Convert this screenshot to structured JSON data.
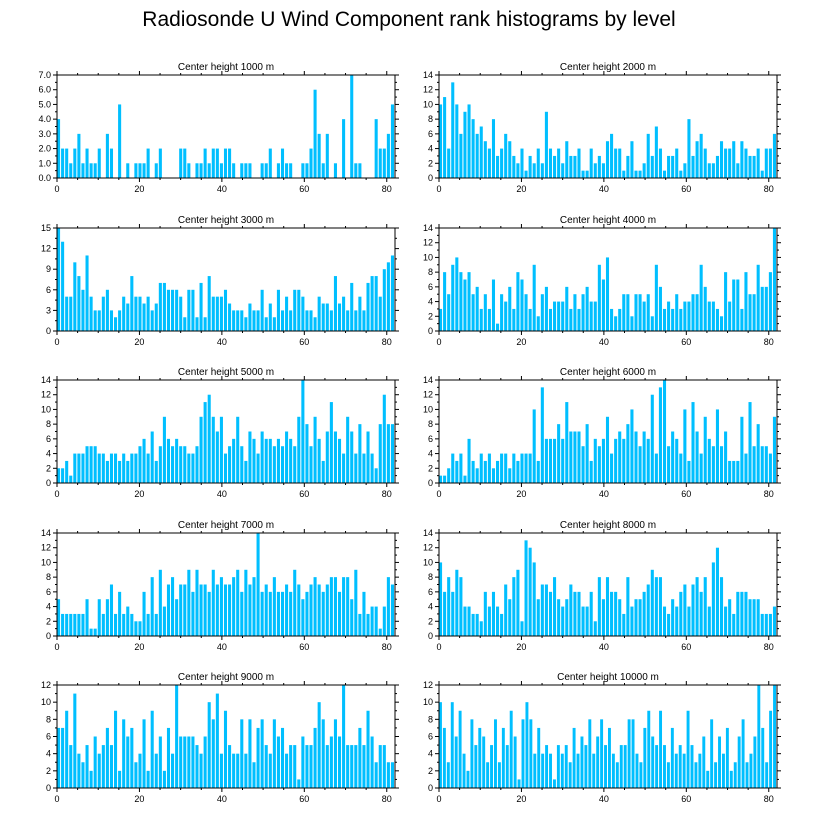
{
  "title": "Radiosonde U Wind Component rank histograms by level",
  "colors": {
    "bar": "#00bfff",
    "axis": "#000000"
  },
  "chart_data": [
    {
      "type": "bar",
      "title": "Center height 1000 m",
      "xlim": [
        0,
        82
      ],
      "ylim": [
        0,
        7
      ],
      "yticks": [
        0,
        1,
        2,
        3,
        4,
        5,
        6,
        7
      ],
      "ytick_labels": [
        "0.0",
        "1.0",
        "2.0",
        "3.0",
        "4.0",
        "5.0",
        "6.0",
        "7.0"
      ],
      "xticks": [
        0,
        20,
        40,
        60,
        80
      ],
      "xtick_labels": [
        "0",
        "20",
        "40",
        "60",
        "80"
      ],
      "values": [
        4,
        2,
        2,
        1,
        2,
        3,
        1,
        2,
        1,
        1,
        2,
        0,
        3,
        2,
        0,
        5,
        0,
        1,
        0,
        1,
        1,
        1,
        2,
        0,
        1,
        2,
        0,
        0,
        0,
        0,
        2,
        2,
        1,
        0,
        1,
        1,
        2,
        1,
        2,
        2,
        1,
        2,
        2,
        1,
        0,
        1,
        1,
        1,
        0,
        0,
        1,
        1,
        2,
        0,
        1,
        2,
        1,
        1,
        0,
        0,
        1,
        1,
        2,
        6,
        3,
        1,
        3,
        0,
        1,
        0,
        4,
        0,
        7,
        1,
        1,
        0,
        0,
        0,
        4,
        2,
        2,
        3,
        5
      ]
    },
    {
      "type": "bar",
      "title": "Center height 2000 m",
      "xlim": [
        0,
        82
      ],
      "ylim": [
        0,
        14
      ],
      "yticks": [
        0,
        2,
        4,
        6,
        8,
        10,
        12,
        14
      ],
      "ytick_labels": [
        "0",
        "2",
        "4",
        "6",
        "8",
        "10",
        "12",
        "14"
      ],
      "xticks": [
        0,
        20,
        40,
        60,
        80
      ],
      "xtick_labels": [
        "0",
        "20",
        "40",
        "60",
        "80"
      ],
      "values": [
        10,
        11,
        4,
        13,
        10,
        6,
        9,
        10,
        8,
        6,
        7,
        5,
        4,
        8,
        3,
        4,
        6,
        5,
        3,
        2,
        4,
        1,
        3,
        2,
        4,
        2,
        9,
        4,
        3,
        4,
        2,
        5,
        3,
        3,
        4,
        1,
        1,
        4,
        2,
        3,
        2,
        5,
        6,
        4,
        4,
        1,
        3,
        5,
        1,
        1,
        2,
        6,
        3,
        7,
        4,
        1,
        3,
        3,
        4,
        1,
        2,
        8,
        3,
        5,
        6,
        4,
        2,
        2,
        3,
        5,
        4,
        4,
        5,
        2,
        5,
        4,
        3,
        3,
        4,
        1,
        4,
        4,
        6
      ]
    },
    {
      "type": "bar",
      "title": "Center height 3000 m",
      "xlim": [
        0,
        82
      ],
      "ylim": [
        0,
        15
      ],
      "yticks": [
        0,
        3,
        6,
        9,
        12,
        15
      ],
      "ytick_labels": [
        "0",
        "3",
        "6",
        "9",
        "12",
        "15"
      ],
      "xticks": [
        0,
        20,
        40,
        60,
        80
      ],
      "xtick_labels": [
        "0",
        "20",
        "40",
        "60",
        "80"
      ],
      "values": [
        15,
        13,
        5,
        5,
        10,
        8,
        6,
        11,
        5,
        3,
        3,
        5,
        6,
        3,
        2,
        3,
        5,
        4,
        8,
        5,
        5,
        4,
        5,
        3,
        4,
        7,
        7,
        6,
        6,
        6,
        5,
        2,
        6,
        6,
        2,
        7,
        2,
        8,
        5,
        5,
        5,
        6,
        4,
        3,
        3,
        3,
        2,
        4,
        3,
        3,
        6,
        2,
        4,
        2,
        6,
        3,
        5,
        3,
        6,
        6,
        5,
        3,
        3,
        2,
        5,
        4,
        4,
        3,
        8,
        4,
        5,
        3,
        7,
        3,
        5,
        3,
        7,
        8,
        8,
        5,
        9,
        10,
        11
      ]
    },
    {
      "type": "bar",
      "title": "Center height 4000 m",
      "xlim": [
        0,
        82
      ],
      "ylim": [
        0,
        14
      ],
      "yticks": [
        0,
        2,
        4,
        6,
        8,
        10,
        12,
        14
      ],
      "ytick_labels": [
        "0",
        "2",
        "4",
        "6",
        "8",
        "10",
        "12",
        "14"
      ],
      "xticks": [
        0,
        20,
        40,
        60,
        80
      ],
      "xtick_labels": [
        "0",
        "20",
        "40",
        "60",
        "80"
      ],
      "values": [
        3,
        8,
        5,
        9,
        10,
        8,
        7,
        8,
        5,
        6,
        3,
        5,
        3,
        7,
        1,
        5,
        4,
        6,
        3,
        8,
        7,
        5,
        3,
        9,
        2,
        5,
        6,
        3,
        4,
        4,
        4,
        6,
        3,
        5,
        3,
        5,
        6,
        4,
        4,
        9,
        7,
        10,
        3,
        2,
        3,
        5,
        5,
        2,
        5,
        5,
        4,
        5,
        2,
        9,
        6,
        3,
        4,
        3,
        5,
        3,
        4,
        4,
        5,
        5,
        9,
        6,
        4,
        4,
        3,
        2,
        8,
        4,
        7,
        7,
        3,
        8,
        5,
        5,
        9,
        6,
        6,
        8,
        14
      ]
    },
    {
      "type": "bar",
      "title": "Center height 5000 m",
      "xlim": [
        0,
        82
      ],
      "ylim": [
        0,
        14
      ],
      "yticks": [
        0,
        2,
        4,
        6,
        8,
        10,
        12,
        14
      ],
      "ytick_labels": [
        "0",
        "2",
        "4",
        "6",
        "8",
        "10",
        "12",
        "14"
      ],
      "xticks": [
        0,
        20,
        40,
        60,
        80
      ],
      "xtick_labels": [
        "0",
        "20",
        "40",
        "60",
        "80"
      ],
      "values": [
        2,
        2,
        3,
        1,
        4,
        4,
        4,
        5,
        5,
        5,
        4,
        4,
        3,
        4,
        4,
        3,
        4,
        3,
        4,
        4,
        5,
        6,
        4,
        7,
        3,
        5,
        9,
        6,
        5,
        6,
        5,
        5,
        4,
        4,
        5,
        9,
        11,
        12,
        9,
        7,
        9,
        4,
        5,
        6,
        9,
        5,
        3,
        7,
        6,
        4,
        7,
        6,
        6,
        5,
        6,
        5,
        7,
        6,
        5,
        9,
        14,
        8,
        5,
        9,
        6,
        3,
        7,
        11,
        7,
        6,
        4,
        9,
        7,
        4,
        8,
        4,
        7,
        4,
        2,
        8,
        12,
        8,
        8
      ]
    },
    {
      "type": "bar",
      "title": "Center height 6000 m",
      "xlim": [
        0,
        82
      ],
      "ylim": [
        0,
        14
      ],
      "yticks": [
        0,
        2,
        4,
        6,
        8,
        10,
        12,
        14
      ],
      "ytick_labels": [
        "0",
        "2",
        "4",
        "6",
        "8",
        "10",
        "12",
        "14"
      ],
      "xticks": [
        0,
        20,
        40,
        60,
        80
      ],
      "xtick_labels": [
        "0",
        "20",
        "40",
        "60",
        "80"
      ],
      "values": [
        1,
        1,
        2,
        4,
        3,
        4,
        1,
        6,
        3,
        2,
        4,
        3,
        4,
        2,
        3,
        4,
        4,
        2,
        4,
        3,
        4,
        4,
        4,
        10,
        3,
        13,
        6,
        6,
        6,
        8,
        6,
        11,
        7,
        7,
        7,
        5,
        8,
        3,
        6,
        5,
        6,
        9,
        4,
        6,
        7,
        6,
        8,
        10,
        7,
        5,
        7,
        6,
        12,
        4,
        13,
        14,
        5,
        7,
        6,
        4,
        10,
        3,
        11,
        7,
        4,
        9,
        6,
        5,
        10,
        5,
        7,
        3,
        3,
        3,
        9,
        4,
        11,
        5,
        8,
        5,
        5,
        4,
        9
      ]
    },
    {
      "type": "bar",
      "title": "Center height 7000 m",
      "xlim": [
        0,
        82
      ],
      "ylim": [
        0,
        14
      ],
      "yticks": [
        0,
        2,
        4,
        6,
        8,
        10,
        12,
        14
      ],
      "ytick_labels": [
        "0",
        "2",
        "4",
        "6",
        "8",
        "10",
        "12",
        "14"
      ],
      "xticks": [
        0,
        20,
        40,
        60,
        80
      ],
      "xtick_labels": [
        "0",
        "20",
        "40",
        "60",
        "80"
      ],
      "values": [
        5,
        3,
        3,
        3,
        3,
        3,
        3,
        5,
        1,
        1,
        5,
        3,
        5,
        7,
        3,
        6,
        3,
        4,
        3,
        2,
        2,
        6,
        3,
        8,
        3,
        9,
        4,
        7,
        8,
        5,
        7,
        7,
        9,
        6,
        9,
        7,
        7,
        6,
        9,
        7,
        8,
        7,
        7,
        8,
        9,
        6,
        9,
        7,
        8,
        14,
        6,
        7,
        6,
        8,
        6,
        6,
        7,
        6,
        9,
        7,
        5,
        6,
        7,
        8,
        7,
        6,
        7,
        8,
        8,
        6,
        8,
        8,
        5,
        9,
        3,
        6,
        3,
        4,
        4,
        1,
        4,
        8,
        7
      ]
    },
    {
      "type": "bar",
      "title": "Center height 8000 m",
      "xlim": [
        0,
        82
      ],
      "ylim": [
        0,
        14
      ],
      "yticks": [
        0,
        2,
        4,
        6,
        8,
        10,
        12,
        14
      ],
      "ytick_labels": [
        "0",
        "2",
        "4",
        "6",
        "8",
        "10",
        "12",
        "14"
      ],
      "xticks": [
        0,
        20,
        40,
        60,
        80
      ],
      "xtick_labels": [
        "0",
        "20",
        "40",
        "60",
        "80"
      ],
      "values": [
        10,
        6,
        8,
        6,
        9,
        8,
        4,
        4,
        3,
        3,
        2,
        6,
        4,
        6,
        4,
        3,
        7,
        5,
        8,
        9,
        2,
        13,
        12,
        10,
        5,
        7,
        7,
        6,
        8,
        5,
        4,
        5,
        7,
        6,
        6,
        4,
        4,
        6,
        2,
        8,
        5,
        8,
        6,
        6,
        5,
        3,
        8,
        4,
        5,
        5,
        6,
        7,
        9,
        8,
        8,
        4,
        3,
        5,
        4,
        6,
        7,
        4,
        7,
        8,
        6,
        8,
        4,
        10,
        12,
        8,
        4,
        5,
        3,
        6,
        6,
        6,
        5,
        5,
        5,
        3,
        3,
        3,
        4
      ]
    },
    {
      "type": "bar",
      "title": "Center height 9000 m",
      "xlim": [
        0,
        82
      ],
      "ylim": [
        0,
        12
      ],
      "yticks": [
        0,
        2,
        4,
        6,
        8,
        10,
        12
      ],
      "ytick_labels": [
        "0",
        "2",
        "4",
        "6",
        "8",
        "10",
        "12"
      ],
      "xticks": [
        0,
        20,
        40,
        60,
        80
      ],
      "xtick_labels": [
        "0",
        "20",
        "40",
        "60",
        "80"
      ],
      "values": [
        7,
        7,
        9,
        5,
        11,
        4,
        3,
        5,
        2,
        6,
        4,
        5,
        7,
        5,
        9,
        2,
        8,
        6,
        7,
        3,
        4,
        8,
        2,
        9,
        4,
        6,
        2,
        7,
        4,
        12,
        6,
        6,
        6,
        6,
        5,
        4,
        6,
        10,
        8,
        11,
        4,
        9,
        5,
        4,
        4,
        8,
        4,
        8,
        3,
        7,
        8,
        5,
        4,
        8,
        6,
        7,
        4,
        5,
        5,
        1,
        6,
        5,
        5,
        7,
        10,
        8,
        5,
        6,
        8,
        6,
        12,
        5,
        5,
        5,
        7,
        5,
        9,
        6,
        3,
        5,
        5,
        3,
        3
      ]
    },
    {
      "type": "bar",
      "title": "Center height 10000 m",
      "xlim": [
        0,
        82
      ],
      "ylim": [
        0,
        12
      ],
      "yticks": [
        0,
        2,
        4,
        6,
        8,
        10,
        12
      ],
      "ytick_labels": [
        "0",
        "2",
        "4",
        "6",
        "8",
        "10",
        "12"
      ],
      "xticks": [
        0,
        20,
        40,
        60,
        80
      ],
      "xtick_labels": [
        "0",
        "20",
        "40",
        "60",
        "80"
      ],
      "values": [
        10,
        7,
        3,
        10,
        6,
        9,
        4,
        2,
        8,
        5,
        7,
        6,
        3,
        5,
        8,
        3,
        7,
        5,
        9,
        6,
        1,
        8,
        10,
        8,
        4,
        7,
        4,
        5,
        4,
        1,
        5,
        4,
        5,
        3,
        7,
        4,
        6,
        5,
        8,
        4,
        6,
        8,
        5,
        7,
        4,
        3,
        5,
        5,
        8,
        8,
        4,
        3,
        7,
        9,
        6,
        5,
        9,
        5,
        3,
        7,
        4,
        5,
        4,
        9,
        5,
        3,
        4,
        6,
        2,
        8,
        3,
        6,
        4,
        7,
        2,
        3,
        6,
        8,
        3,
        4,
        6,
        12,
        7,
        3,
        9,
        12
      ]
    }
  ]
}
